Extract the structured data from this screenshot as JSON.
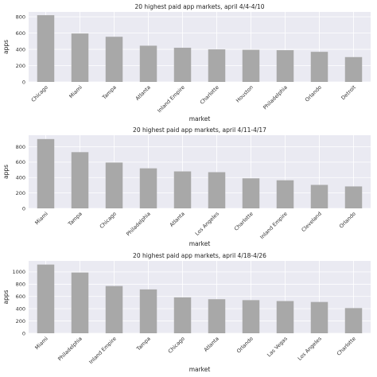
{
  "chart_data": [
    {
      "type": "bar",
      "title": "20 highest paid app markets, april 4/4-4/10",
      "xlabel": "market",
      "ylabel": "apps",
      "categories": [
        "Chicago",
        "Miami",
        "Tampa",
        "Atlanta",
        "Inland Empire",
        "Charlotte",
        "Houston",
        "Philadelphia",
        "Orlando",
        "Detroit"
      ],
      "values": [
        820,
        595,
        555,
        445,
        420,
        400,
        395,
        390,
        370,
        305
      ],
      "ylim": [
        0,
        860
      ],
      "yticks": [
        0,
        200,
        400,
        600,
        800
      ],
      "grid": true,
      "bar_color": "#a8a8a8"
    },
    {
      "type": "bar",
      "title": "20 highest paid app markets, april 4/11-4/17",
      "xlabel": "market",
      "ylabel": "apps",
      "categories": [
        "Miami",
        "Tampa",
        "Chicago",
        "Philadelphia",
        "Atlanta",
        "Los Angeles",
        "Charlotte",
        "Inland Empire",
        "Cleveland",
        "Orlando"
      ],
      "values": [
        900,
        730,
        595,
        520,
        480,
        470,
        390,
        365,
        305,
        285
      ],
      "ylim": [
        0,
        950
      ],
      "yticks": [
        0,
        200,
        400,
        600,
        800
      ],
      "grid": true,
      "bar_color": "#a8a8a8"
    },
    {
      "type": "bar",
      "title": "20 highest paid app markets, april 4/18-4/26",
      "xlabel": "market",
      "ylabel": "apps",
      "categories": [
        "Miami",
        "Philadelphia",
        "Inland Empire",
        "Tampa",
        "Chicago",
        "Atlanta",
        "Orlando",
        "Las Vegas",
        "Los Angeles",
        "Charlotte"
      ],
      "values": [
        1120,
        990,
        770,
        715,
        585,
        555,
        540,
        525,
        510,
        410
      ],
      "ylim": [
        0,
        1180
      ],
      "yticks": [
        0,
        200,
        400,
        600,
        800,
        1000
      ],
      "grid": true,
      "bar_color": "#a8a8a8"
    }
  ]
}
